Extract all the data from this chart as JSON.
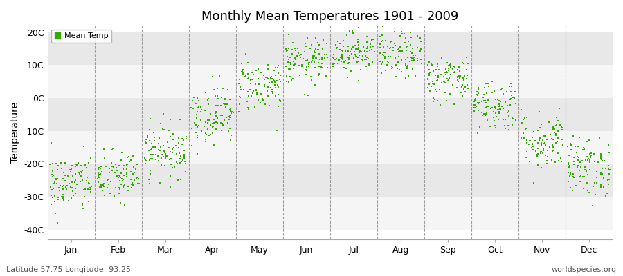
{
  "title": "Monthly Mean Temperatures 1901 - 2009",
  "ylabel": "Temperature",
  "subtitle_left": "Latitude 57.75 Longitude -93.25",
  "subtitle_right": "worldspecies.org",
  "ytick_labels": [
    "20C",
    "10C",
    "0C",
    "-10C",
    "-20C",
    "-30C",
    "-40C"
  ],
  "ytick_values": [
    20,
    10,
    0,
    -10,
    -20,
    -30,
    -40
  ],
  "ylim": [
    -43,
    22
  ],
  "months": [
    "Jan",
    "Feb",
    "Mar",
    "Apr",
    "May",
    "Jun",
    "Jul",
    "Aug",
    "Sep",
    "Oct",
    "Nov",
    "Dec"
  ],
  "month_centers": [
    1,
    2,
    3,
    4,
    5,
    6,
    7,
    8,
    9,
    10,
    11,
    12
  ],
  "dot_color": "#33aa00",
  "figure_bg_color": "#ffffff",
  "plot_bg_color": "#ffffff",
  "band_color_dark": "#e8e8e8",
  "band_color_light": "#f5f5f5",
  "legend_label": "Mean Temp",
  "n_years": 109,
  "mean_temps": [
    -26,
    -24,
    -16,
    -5,
    4,
    11,
    14,
    13,
    6,
    -2,
    -13,
    -21
  ],
  "std_temps": [
    4.5,
    4.0,
    4.0,
    4.5,
    4.0,
    3.5,
    3.0,
    3.5,
    3.5,
    4.0,
    4.5,
    4.5
  ],
  "seed": 42,
  "dot_size": 4,
  "vline_color": "#888888",
  "vline_positions": [
    1.5,
    2.5,
    3.5,
    4.5,
    5.5,
    6.5,
    7.5,
    8.5,
    9.5,
    10.5,
    11.5
  ]
}
